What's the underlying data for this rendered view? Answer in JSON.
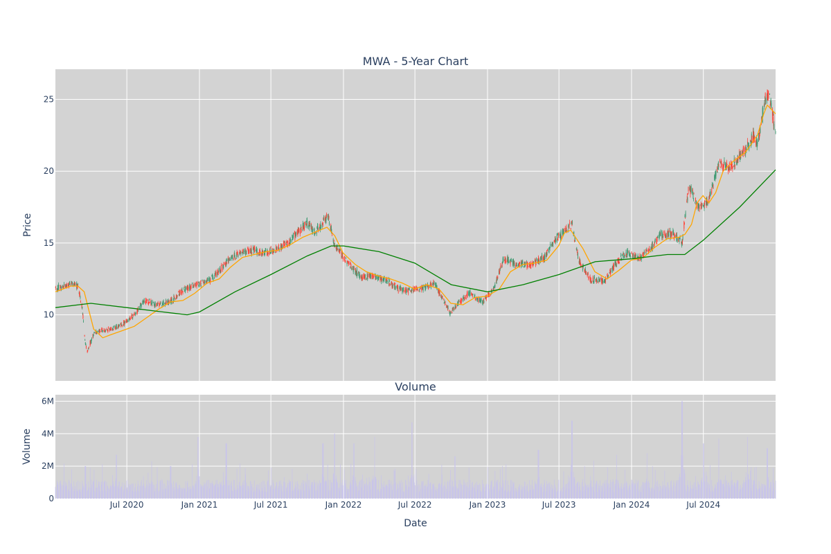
{
  "chart_data": [
    {
      "type": "candlestick",
      "title": "MWA - 5-Year Chart",
      "xlabel": "",
      "ylabel": "Price",
      "ylim": [
        5.4,
        27.1
      ],
      "yticks": [
        10,
        15,
        20,
        25
      ],
      "grid": true,
      "up_color": "#3d9970",
      "down_color": "#ff4136",
      "close_anchors": {
        "dates": [
          "2020-01-02",
          "2020-02-15",
          "2020-02-28",
          "2020-03-10",
          "2020-03-18",
          "2020-03-23",
          "2020-04-10",
          "2020-05-20",
          "2020-06-15",
          "2020-07-20",
          "2020-08-15",
          "2020-09-15",
          "2020-10-20",
          "2020-11-20",
          "2020-12-31",
          "2021-02-01",
          "2021-03-15",
          "2021-04-15",
          "2021-05-15",
          "2021-06-15",
          "2021-07-15",
          "2021-08-15",
          "2021-09-15",
          "2021-10-01",
          "2021-10-20",
          "2021-11-05",
          "2021-11-22",
          "2021-12-10",
          "2022-01-10",
          "2022-02-15",
          "2022-03-20",
          "2022-04-20",
          "2022-05-20",
          "2022-06-15",
          "2022-07-15",
          "2022-08-20",
          "2022-09-28",
          "2022-10-20",
          "2022-11-15",
          "2022-12-20",
          "2023-01-20",
          "2023-02-10",
          "2023-03-20",
          "2023-04-20",
          "2023-05-25",
          "2023-06-20",
          "2023-07-15",
          "2023-08-03",
          "2023-08-20",
          "2023-09-20",
          "2023-10-25",
          "2023-11-20",
          "2023-12-20",
          "2024-01-20",
          "2024-02-15",
          "2024-03-15",
          "2024-04-15",
          "2024-05-08",
          "2024-05-25",
          "2024-06-20",
          "2024-07-15",
          "2024-08-10",
          "2024-09-10",
          "2024-10-10",
          "2024-11-05",
          "2024-11-15",
          "2024-12-05",
          "2024-12-15",
          "2024-12-31"
        ],
        "close": [
          11.8,
          12.2,
          12.0,
          10.5,
          8.0,
          7.5,
          8.8,
          9.0,
          9.2,
          10.0,
          11.0,
          10.7,
          10.9,
          11.7,
          12.2,
          12.5,
          13.8,
          14.3,
          14.5,
          14.3,
          14.6,
          15.0,
          16.0,
          16.4,
          15.8,
          16.2,
          17.0,
          14.8,
          13.7,
          12.6,
          12.7,
          12.4,
          11.8,
          11.7,
          11.8,
          12.2,
          10.1,
          10.8,
          11.5,
          10.9,
          12.0,
          13.9,
          13.5,
          13.5,
          14.0,
          15.2,
          15.8,
          16.3,
          13.8,
          12.4,
          12.4,
          13.5,
          14.3,
          13.9,
          14.5,
          15.6,
          15.6,
          15.0,
          19.0,
          17.4,
          18.0,
          20.5,
          20.3,
          21.3,
          22.5,
          21.8,
          25.1,
          25.3,
          22.6
        ]
      },
      "moving_averages": [
        {
          "color": "#ffa500",
          "dates": [
            "2020-01-02",
            "2020-02-10",
            "2020-02-28",
            "2020-03-15",
            "2020-03-25",
            "2020-04-08",
            "2020-05-01",
            "2020-05-20",
            "2020-06-20",
            "2020-07-20",
            "2020-08-10",
            "2020-09-20",
            "2020-10-20",
            "2020-11-20",
            "2020-12-20",
            "2021-01-20",
            "2021-02-20",
            "2021-03-20",
            "2021-04-20",
            "2021-05-20",
            "2021-06-20",
            "2021-07-20",
            "2021-08-20",
            "2021-09-20",
            "2021-10-25",
            "2021-11-20",
            "2021-12-10",
            "2021-12-31",
            "2022-01-31",
            "2022-02-28",
            "2022-03-31",
            "2022-04-30",
            "2022-05-31",
            "2022-06-30",
            "2022-07-31",
            "2022-08-31",
            "2022-09-30",
            "2022-10-31",
            "2022-11-30",
            "2022-12-31",
            "2023-01-31",
            "2023-02-28",
            "2023-03-31",
            "2023-04-30",
            "2023-05-31",
            "2023-06-30",
            "2023-07-15",
            "2023-07-31",
            "2023-08-31",
            "2023-09-30",
            "2023-10-31",
            "2023-11-30",
            "2023-12-31",
            "2024-01-31",
            "2024-02-29",
            "2024-03-31",
            "2024-04-30",
            "2024-05-15",
            "2024-06-01",
            "2024-06-15",
            "2024-06-30",
            "2024-07-15",
            "2024-08-01",
            "2024-08-20",
            "2024-09-15",
            "2024-10-15",
            "2024-11-15",
            "2024-12-01",
            "2024-12-10",
            "2024-12-31"
          ],
          "values": [
            11.6,
            12.0,
            12.0,
            11.6,
            10.5,
            9.0,
            8.4,
            8.6,
            8.9,
            9.2,
            9.6,
            10.4,
            10.9,
            11.0,
            11.5,
            12.2,
            12.5,
            13.3,
            14.0,
            14.2,
            14.4,
            14.5,
            14.9,
            15.4,
            15.8,
            16.1,
            15.5,
            14.3,
            13.5,
            13.0,
            12.7,
            12.5,
            12.2,
            11.8,
            12.1,
            11.8,
            10.8,
            10.7,
            11.2,
            11.3,
            11.8,
            13.0,
            13.5,
            13.6,
            13.8,
            14.8,
            15.7,
            15.9,
            14.6,
            13.0,
            12.5,
            13.1,
            13.8,
            14.0,
            14.7,
            15.3,
            15.4,
            15.6,
            16.3,
            17.8,
            18.3,
            17.8,
            18.5,
            20.0,
            20.7,
            21.3,
            22.5,
            24.0,
            24.6,
            24.0
          ]
        },
        {
          "color": "#008000",
          "dates": [
            "2020-01-02",
            "2020-04-01",
            "2020-07-01",
            "2020-10-01",
            "2020-12-01",
            "2021-01-01",
            "2021-04-01",
            "2021-07-01",
            "2021-10-01",
            "2021-12-01",
            "2022-01-01",
            "2022-04-01",
            "2022-07-01",
            "2022-10-01",
            "2023-01-01",
            "2023-04-01",
            "2023-07-01",
            "2023-10-01",
            "2024-01-01",
            "2024-04-01",
            "2024-05-15",
            "2024-07-01",
            "2024-10-01",
            "2024-12-31"
          ],
          "values": [
            10.5,
            10.8,
            10.5,
            10.2,
            10.0,
            10.2,
            11.6,
            12.8,
            14.1,
            14.8,
            14.8,
            14.4,
            13.6,
            12.1,
            11.6,
            12.1,
            12.8,
            13.7,
            13.9,
            14.2,
            14.2,
            15.2,
            17.5,
            20.1
          ]
        }
      ]
    },
    {
      "type": "bar",
      "title": "Volume",
      "xlabel": "Date",
      "ylabel": "Volume",
      "ylim": [
        0,
        6400000
      ],
      "yticks": [
        0,
        2000000,
        4000000,
        6000000
      ],
      "ytick_labels": [
        "0",
        "2M",
        "4M",
        "6M"
      ],
      "bar_color": "#c8c4ea",
      "xlim": [
        "2020-01-02",
        "2024-12-31"
      ],
      "xticks": [
        "2020-07-01",
        "2021-01-01",
        "2021-07-01",
        "2022-01-01",
        "2022-07-01",
        "2023-01-01",
        "2023-07-01",
        "2024-01-01",
        "2024-07-01"
      ],
      "xtick_labels": [
        "Jul 2020",
        "Jan 2021",
        "Jul 2021",
        "Jan 2022",
        "Jul 2022",
        "Jan 2023",
        "Jul 2023",
        "Jan 2024",
        "Jul 2024"
      ],
      "baseline_volume": 900000,
      "volume_spikes": [
        {
          "date": "2020-03-18",
          "value": 2000000
        },
        {
          "date": "2020-06-05",
          "value": 2700000
        },
        {
          "date": "2020-10-20",
          "value": 2000000
        },
        {
          "date": "2020-12-28",
          "value": 3800000
        },
        {
          "date": "2021-03-10",
          "value": 3400000
        },
        {
          "date": "2021-11-10",
          "value": 3400000
        },
        {
          "date": "2021-12-10",
          "value": 4000000
        },
        {
          "date": "2022-01-28",
          "value": 3400000
        },
        {
          "date": "2022-03-20",
          "value": 3800000
        },
        {
          "date": "2022-06-24",
          "value": 4700000
        },
        {
          "date": "2022-10-10",
          "value": 2600000
        },
        {
          "date": "2023-05-10",
          "value": 3000000
        },
        {
          "date": "2023-08-03",
          "value": 4800000
        },
        {
          "date": "2023-11-25",
          "value": 2700000
        },
        {
          "date": "2024-02-10",
          "value": 2800000
        },
        {
          "date": "2024-05-08",
          "value": 6000000
        },
        {
          "date": "2024-07-01",
          "value": 3400000
        },
        {
          "date": "2024-08-10",
          "value": 3700000
        },
        {
          "date": "2024-10-20",
          "value": 3800000
        },
        {
          "date": "2024-12-10",
          "value": 3100000
        }
      ]
    }
  ]
}
